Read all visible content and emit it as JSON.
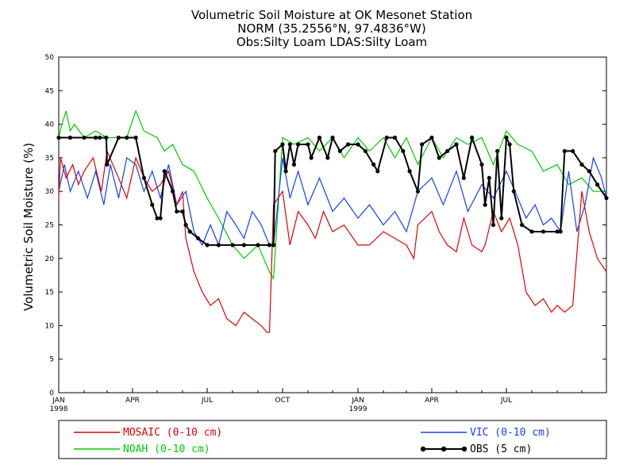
{
  "chart_data": {
    "type": "line",
    "title": "Volumetric Soil Moisture at OK Mesonet Station",
    "subtitle": "NORM (35.2556°N, 97.4836°W)",
    "subtitle2": "Obs:Silty Loam   LDAS:Silty Loam",
    "ylabel": "Volumetric Soil Moisture (%)",
    "xlabel": "",
    "ylim": [
      0,
      50
    ],
    "yticks": [
      "0",
      "5",
      "10",
      "15",
      "20",
      "25",
      "30",
      "35",
      "40",
      "45",
      "50"
    ],
    "xlim": [
      "1998-01-01",
      "1999-10-31"
    ],
    "xticks": [
      {
        "date": "1998-01-01",
        "label": "JAN",
        "sub": "1998"
      },
      {
        "date": "1998-04-01",
        "label": "APR",
        "sub": ""
      },
      {
        "date": "1998-07-01",
        "label": "JUL",
        "sub": ""
      },
      {
        "date": "1998-10-01",
        "label": "OCT",
        "sub": ""
      },
      {
        "date": "1999-01-01",
        "label": "JAN",
        "sub": "1999"
      },
      {
        "date": "1999-04-01",
        "label": "APR",
        "sub": ""
      },
      {
        "date": "1999-07-01",
        "label": "JUL",
        "sub": ""
      }
    ],
    "grid": false,
    "legend_position": "bottom",
    "series": [
      {
        "name": "MOSAIC (0-10 cm)",
        "color": "#e00000",
        "marker": false,
        "x": [
          "1998-01-01",
          "1998-01-03",
          "1998-01-10",
          "1998-01-18",
          "1998-01-25",
          "1998-02-01",
          "1998-02-12",
          "1998-02-22",
          "1998-03-01",
          "1998-03-15",
          "1998-03-25",
          "1998-04-05",
          "1998-04-15",
          "1998-04-25",
          "1998-05-05",
          "1998-05-15",
          "1998-05-25",
          "1998-06-01",
          "1998-06-05",
          "1998-06-15",
          "1998-06-25",
          "1998-07-05",
          "1998-07-15",
          "1998-07-25",
          "1998-08-05",
          "1998-08-15",
          "1998-08-25",
          "1998-09-05",
          "1998-09-12",
          "1998-09-15",
          "1998-09-20",
          "1998-10-01",
          "1998-10-10",
          "1998-10-20",
          "1998-11-01",
          "1998-11-10",
          "1998-11-20",
          "1998-12-01",
          "1998-12-15",
          "1999-01-01",
          "1999-01-15",
          "1999-02-01",
          "1999-02-15",
          "1999-03-01",
          "1999-03-10",
          "1999-03-15",
          "1999-04-01",
          "1999-04-10",
          "1999-04-20",
          "1999-05-01",
          "1999-05-10",
          "1999-05-20",
          "1999-06-01",
          "1999-06-05",
          "1999-06-15",
          "1999-06-25",
          "1999-07-05",
          "1999-07-15",
          "1999-07-25",
          "1999-08-05",
          "1999-08-15",
          "1999-08-25",
          "1999-09-01",
          "1999-09-10",
          "1999-09-20",
          "1999-10-01",
          "1999-10-10",
          "1999-10-20",
          "1999-10-31"
        ],
        "y": [
          29,
          35,
          32,
          34,
          31,
          33,
          35,
          30,
          36,
          32,
          29,
          35,
          32,
          30,
          31,
          33,
          28,
          30,
          23,
          18,
          15,
          13,
          14,
          11,
          10,
          12,
          11,
          10,
          9,
          9,
          28,
          30,
          22,
          27,
          25,
          23,
          27,
          24,
          25,
          22,
          22,
          24,
          23,
          22,
          20,
          25,
          27,
          24,
          22,
          21,
          26,
          22,
          21,
          22,
          27,
          24,
          26,
          22,
          15,
          13,
          14,
          12,
          13,
          12,
          13,
          30,
          24,
          20,
          18
        ]
      },
      {
        "name": "NOAH (0-10 cm)",
        "color": "#00cc00",
        "marker": false,
        "x": [
          "1998-01-01",
          "1998-01-05",
          "1998-01-10",
          "1998-01-15",
          "1998-01-20",
          "1998-02-01",
          "1998-02-15",
          "1998-03-01",
          "1998-03-15",
          "1998-03-25",
          "1998-04-05",
          "1998-04-15",
          "1998-05-01",
          "1998-05-10",
          "1998-05-20",
          "1998-06-01",
          "1998-06-15",
          "1998-07-01",
          "1998-07-15",
          "1998-08-01",
          "1998-08-15",
          "1998-09-01",
          "1998-09-15",
          "1998-09-20",
          "1998-10-01",
          "1998-10-15",
          "1998-11-01",
          "1998-11-15",
          "1998-12-01",
          "1998-12-15",
          "1999-01-01",
          "1999-01-15",
          "1999-02-01",
          "1999-02-15",
          "1999-03-01",
          "1999-03-15",
          "1999-04-01",
          "1999-04-15",
          "1999-05-01",
          "1999-05-15",
          "1999-06-01",
          "1999-06-15",
          "1999-07-01",
          "1999-07-15",
          "1999-08-01",
          "1999-08-15",
          "1999-09-01",
          "1999-09-15",
          "1999-10-01",
          "1999-10-15",
          "1999-10-31"
        ],
        "y": [
          38,
          40,
          42,
          39,
          40,
          38,
          39,
          38,
          38,
          38,
          42,
          39,
          38,
          36,
          37,
          34,
          33,
          29,
          26,
          22,
          20,
          22,
          18,
          17,
          38,
          37,
          38,
          36,
          38,
          35,
          38,
          36,
          38,
          35,
          38,
          34,
          38,
          35,
          38,
          37,
          38,
          34,
          39,
          37,
          36,
          33,
          34,
          31,
          32,
          30,
          30
        ]
      },
      {
        "name": "VIC (0-10 cm)",
        "color": "#1040ff",
        "marker": false,
        "x": [
          "1998-01-01",
          "1998-01-08",
          "1998-01-15",
          "1998-01-25",
          "1998-02-05",
          "1998-02-15",
          "1998-02-25",
          "1998-03-05",
          "1998-03-15",
          "1998-03-25",
          "1998-04-05",
          "1998-04-15",
          "1998-04-25",
          "1998-05-05",
          "1998-05-15",
          "1998-05-25",
          "1998-06-05",
          "1998-06-15",
          "1998-06-25",
          "1998-07-05",
          "1998-07-15",
          "1998-07-25",
          "1998-08-05",
          "1998-08-15",
          "1998-08-25",
          "1998-09-05",
          "1998-09-15",
          "1998-09-20",
          "1998-10-01",
          "1998-10-10",
          "1998-10-20",
          "1998-11-01",
          "1998-11-15",
          "1998-12-01",
          "1998-12-15",
          "1999-01-01",
          "1999-01-15",
          "1999-02-01",
          "1999-02-15",
          "1999-03-01",
          "1999-03-15",
          "1999-04-01",
          "1999-04-15",
          "1999-05-01",
          "1999-05-15",
          "1999-06-01",
          "1999-06-15",
          "1999-07-01",
          "1999-07-15",
          "1999-07-25",
          "1999-08-05",
          "1999-08-15",
          "1999-08-25",
          "1999-09-05",
          "1999-09-15",
          "1999-09-25",
          "1999-10-05",
          "1999-10-15",
          "1999-10-25",
          "1999-10-31"
        ],
        "y": [
          30,
          34,
          30,
          33,
          29,
          33,
          28,
          34,
          29,
          35,
          34,
          30,
          33,
          29,
          34,
          28,
          30,
          24,
          22,
          25,
          22,
          27,
          25,
          23,
          27,
          25,
          22,
          22,
          35,
          29,
          33,
          28,
          32,
          27,
          29,
          26,
          28,
          25,
          27,
          24,
          30,
          32,
          28,
          33,
          27,
          31,
          29,
          33,
          29,
          26,
          28,
          25,
          26,
          24,
          33,
          24,
          28,
          35,
          32,
          29
        ]
      },
      {
        "name": "OBS (5 cm)",
        "color": "#000000",
        "marker": true,
        "x": [
          "1998-01-01",
          "1998-01-15",
          "1998-02-01",
          "1998-02-15",
          "1998-02-20",
          "1998-02-28",
          "1998-03-01",
          "1998-03-15",
          "1998-03-25",
          "1998-04-05",
          "1998-04-15",
          "1998-04-25",
          "1998-05-01",
          "1998-05-05",
          "1998-05-10",
          "1998-05-20",
          "1998-05-25",
          "1998-06-01",
          "1998-06-05",
          "1998-06-10",
          "1998-06-20",
          "1998-07-01",
          "1998-07-15",
          "1998-08-01",
          "1998-08-15",
          "1998-09-01",
          "1998-09-15",
          "1998-09-20",
          "1998-09-22",
          "1998-10-01",
          "1998-10-05",
          "1998-10-10",
          "1998-10-15",
          "1998-10-20",
          "1998-11-01",
          "1998-11-05",
          "1998-11-15",
          "1998-11-25",
          "1998-12-01",
          "1998-12-10",
          "1998-12-20",
          "1999-01-01",
          "1999-01-10",
          "1999-01-20",
          "1999-01-25",
          "1999-02-05",
          "1999-02-15",
          "1999-02-25",
          "1999-03-05",
          "1999-03-15",
          "1999-03-20",
          "1999-04-01",
          "1999-04-10",
          "1999-04-20",
          "1999-05-01",
          "1999-05-10",
          "1999-05-20",
          "1999-06-01",
          "1999-06-05",
          "1999-06-10",
          "1999-06-15",
          "1999-06-20",
          "1999-06-25",
          "1999-07-01",
          "1999-07-05",
          "1999-07-10",
          "1999-07-20",
          "1999-08-01",
          "1999-08-15",
          "1999-09-01",
          "1999-09-05",
          "1999-09-10",
          "1999-09-20",
          "1999-10-01",
          "1999-10-10",
          "1999-10-20",
          "1999-10-31"
        ],
        "y": [
          38,
          38,
          38,
          38,
          38,
          38,
          34,
          38,
          38,
          38,
          32,
          28,
          26,
          26,
          33,
          30,
          27,
          27,
          25,
          24,
          23,
          22,
          22,
          22,
          22,
          22,
          22,
          22,
          36,
          37,
          33,
          37,
          34,
          37,
          37,
          35,
          38,
          35,
          38,
          36,
          37,
          37,
          36,
          34,
          33,
          38,
          38,
          36,
          33,
          30,
          37,
          38,
          35,
          36,
          37,
          32,
          38,
          34,
          28,
          32,
          25,
          36,
          26,
          38,
          37,
          30,
          25,
          24,
          24,
          24,
          24,
          36,
          36,
          34,
          33,
          31,
          29
        ]
      }
    ]
  }
}
